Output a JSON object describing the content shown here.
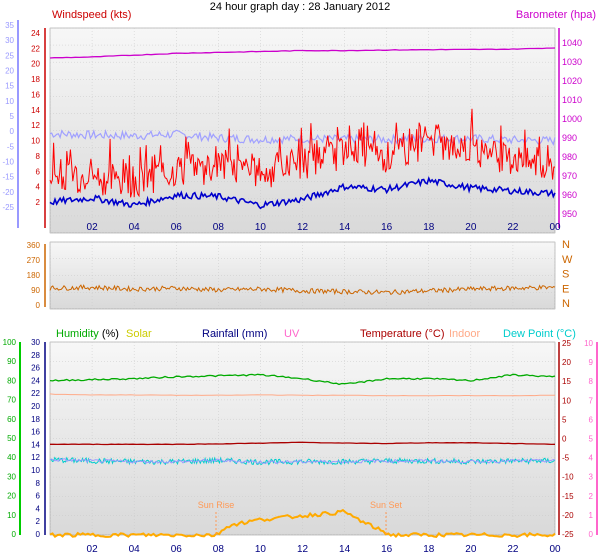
{
  "title": "24 hour graph day : 28 January 2012",
  "colors": {
    "windspeed": "#ff0000",
    "windavg": "#0000cc",
    "windgust_band": "#a0a0ff",
    "barometer": "#cc00cc",
    "direction": "#cc6600",
    "humidity": "#00aa00",
    "solar": "#cccc00",
    "rainfall": "#000080",
    "uv": "#ff66cc",
    "temperature": "#aa0000",
    "indoor": "#ffaa88",
    "dewpoint": "#00cccc",
    "sun_marker": "#ff9955",
    "left_axis_purple": "#9999ff",
    "left_axis_green": "#00cc00",
    "right_axis_pink": "#ff66cc"
  },
  "x_ticks": [
    "02",
    "04",
    "06",
    "08",
    "10",
    "12",
    "14",
    "16",
    "18",
    "20",
    "22",
    "00"
  ],
  "chart_data": [
    {
      "type": "line",
      "panel": "wind-barometer",
      "legend": {
        "windspeed": "Windspeed (kts)",
        "barometer": "Barometer (hpa)"
      },
      "left_outer_ticks": [
        "35",
        "30",
        "25",
        "20",
        "15",
        "10",
        "5",
        "0",
        "-5",
        "-10",
        "-15",
        "-20",
        "-25"
      ],
      "left_inner_ticks": [
        "24",
        "22",
        "20",
        "18",
        "16",
        "14",
        "12",
        "10",
        "8",
        "6",
        "4",
        "2"
      ],
      "left_inner_ylim": [
        0,
        26
      ],
      "right_ticks": [
        "1040",
        "1030",
        "1020",
        "1010",
        "1000",
        "990",
        "980",
        "970",
        "960",
        "950"
      ],
      "right_ylim": [
        945,
        1047
      ],
      "series": [
        {
          "name": "Windspeed (kts)",
          "key": "windspeed",
          "x": [
            0,
            2,
            4,
            6,
            8,
            10,
            12,
            14,
            16,
            18,
            20,
            22,
            24
          ],
          "y": [
            6,
            5.5,
            5,
            6.5,
            7,
            6,
            7.5,
            9,
            8.5,
            10,
            9.5,
            8,
            7
          ]
        },
        {
          "key": "windavg",
          "x": [
            0,
            2,
            4,
            6,
            8,
            10,
            12,
            14,
            16,
            18,
            20,
            22,
            24
          ],
          "y": [
            2.2,
            2.8,
            1.8,
            3.2,
            3.0,
            1.8,
            2.6,
            4.4,
            4.0,
            5.2,
            4.2,
            3.8,
            3.4
          ]
        },
        {
          "key": "windgust_band",
          "x": [
            0,
            2,
            4,
            6,
            8,
            10,
            12,
            14,
            16,
            18,
            20,
            22,
            24
          ],
          "y": [
            11.8,
            11.6,
            11.5,
            11.7,
            11.2,
            11.0,
            11.1,
            11.0,
            11.0,
            11.1,
            11.1,
            10.9,
            10.8
          ]
        },
        {
          "name": "Barometer (hpa)",
          "key": "barometer",
          "x": [
            0,
            2,
            4,
            6,
            8,
            10,
            12,
            14,
            16,
            18,
            20,
            22,
            24
          ],
          "y": [
            1035,
            1035.5,
            1036.5,
            1037.5,
            1038,
            1038.5,
            1039,
            1039,
            1039.3,
            1039.5,
            1039.6,
            1039.8,
            1040.5
          ]
        }
      ]
    },
    {
      "type": "line",
      "panel": "wind-direction",
      "left_ticks": [
        "360",
        "270",
        "180",
        "90",
        "0"
      ],
      "ylim": [
        0,
        360
      ],
      "right_labels": [
        "N",
        "W",
        "S",
        "E",
        "N"
      ],
      "series": [
        {
          "key": "direction",
          "x": [
            0,
            2,
            4,
            6,
            8,
            10,
            12,
            14,
            16,
            18,
            20,
            22,
            24
          ],
          "y": [
            105,
            110,
            100,
            105,
            95,
            100,
            90,
            85,
            80,
            90,
            100,
            105,
            110
          ]
        }
      ]
    },
    {
      "type": "line",
      "panel": "temp-humidity",
      "legend": {
        "humidity": "Humidity",
        "humidity_unit": "(%)",
        "solar": "Solar",
        "rainfall": "Rainfall (mm)",
        "uv": "UV",
        "temperature": "Temperature (°C)",
        "indoor": "Indoor",
        "dewpoint": "Dew Point (°C)"
      },
      "left_outer_ticks": [
        "100",
        "90",
        "80",
        "70",
        "60",
        "50",
        "40",
        "30",
        "20",
        "10",
        "0"
      ],
      "left_outer_ylim": [
        0,
        100
      ],
      "left_inner_ticks": [
        "30",
        "28",
        "26",
        "24",
        "22",
        "20",
        "18",
        "16",
        "14",
        "12",
        "10",
        "8",
        "6",
        "4",
        "2",
        "0"
      ],
      "right_inner_ticks": [
        "25",
        "20",
        "15",
        "10",
        "5",
        "0",
        "-5",
        "-10",
        "-15",
        "-20",
        "-25"
      ],
      "right_inner_ylim": [
        -25,
        25
      ],
      "right_outer_ticks": [
        "10",
        "9",
        "8",
        "7",
        "6",
        "5",
        "4",
        "3",
        "2",
        "1",
        "0"
      ],
      "annotations": [
        "Sun Rise",
        "Sun Set"
      ],
      "series": [
        {
          "name": "Humidity",
          "key": "humidity",
          "x": [
            0,
            2,
            4,
            6,
            8,
            10,
            12,
            14,
            16,
            18,
            20,
            22,
            24
          ],
          "y": [
            80,
            80.5,
            81,
            82,
            82.5,
            83,
            81,
            78,
            81,
            81,
            80,
            83,
            82
          ]
        },
        {
          "name": "Temperature (°C)",
          "key": "temperature",
          "x": [
            0,
            2,
            4,
            6,
            8,
            10,
            12,
            14,
            16,
            18,
            20,
            22,
            24
          ],
          "y": [
            -1.5,
            -1.5,
            -1.5,
            -1.5,
            -1.4,
            -1.2,
            -1.0,
            -1.2,
            -1.3,
            -1.1,
            -1.1,
            -1.3,
            -1.5
          ]
        },
        {
          "name": "Indoor",
          "key": "indoor",
          "x": [
            0,
            2,
            4,
            6,
            8,
            10,
            12,
            14,
            16,
            18,
            20,
            22,
            24
          ],
          "y": [
            11.5,
            11.3,
            11.3,
            11.2,
            11.2,
            11.3,
            11.2,
            11.2,
            11.1,
            11.1,
            11.1,
            11.1,
            11.2
          ]
        },
        {
          "name": "Dew Point (°C)",
          "key": "dewpoint",
          "x": [
            0,
            2,
            4,
            6,
            8,
            10,
            12,
            14,
            16,
            18,
            20,
            22,
            24
          ],
          "y": [
            -5.5,
            -5.8,
            -6.0,
            -6.0,
            -5.7,
            -6.1,
            -6.0,
            -6.0,
            -5.8,
            -5.8,
            -6.0,
            -5.8,
            -5.8
          ]
        },
        {
          "name": "Solar",
          "key": "solar",
          "x": [
            0,
            7.9,
            8.5,
            10,
            12,
            14,
            15,
            16.2,
            24
          ],
          "y": [
            0,
            0,
            0.5,
            0.8,
            1.0,
            1.2,
            0.6,
            0,
            0
          ]
        }
      ]
    }
  ]
}
